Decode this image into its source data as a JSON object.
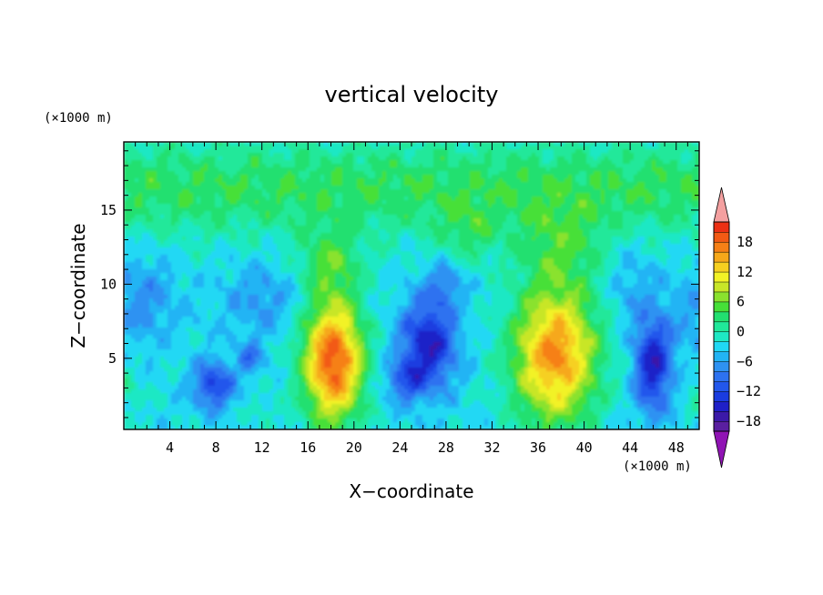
{
  "chart_data": {
    "type": "heatmap",
    "title": "vertical velocity",
    "xlabel": "X−coordinate",
    "ylabel": "Z−coordinate",
    "x_unit": "(×1000 m)",
    "y_unit": "(×1000 m)",
    "xlim": [
      0,
      50
    ],
    "ylim": [
      0.2,
      19.6
    ],
    "x_ticks": [
      4,
      8,
      12,
      16,
      20,
      24,
      28,
      32,
      36,
      40,
      44,
      48
    ],
    "y_ticks": [
      5,
      10,
      15
    ],
    "colorbar": {
      "range": [
        -20,
        20
      ],
      "interval": 2,
      "tick_values": [
        18,
        12,
        6,
        0,
        -6,
        -12,
        -18
      ],
      "tick_labels": [
        "18",
        "12",
        "6",
        "0",
        "−6",
        "−12",
        "−18"
      ],
      "extends": "both",
      "colors": [
        "#5a1fa0",
        "#3b19a8",
        "#1f20c8",
        "#1a3ce0",
        "#2257ec",
        "#2d72f0",
        "#2e92f2",
        "#22b4f4",
        "#20d8f4",
        "#1ee8c4",
        "#20e89a",
        "#22e070",
        "#46e038",
        "#8ae22e",
        "#c8e628",
        "#f2f226",
        "#f6d020",
        "#f6a81a",
        "#f68016",
        "#f25a14",
        "#ec3014"
      ],
      "over_color": "#f4a0a0",
      "under_color": "#9014b4"
    },
    "features": [
      {
        "x": 18.2,
        "z": 4.8,
        "peak": 19
      },
      {
        "x": 37.5,
        "z": 5.2,
        "peak": 17
      },
      {
        "x": 26.5,
        "z": 6.0,
        "peak": -14
      },
      {
        "x": 7.8,
        "z": 3.2,
        "peak": -11
      },
      {
        "x": 11.0,
        "z": 5.0,
        "peak": -8
      },
      {
        "x": 46.0,
        "z": 4.5,
        "peak": -15
      }
    ]
  }
}
